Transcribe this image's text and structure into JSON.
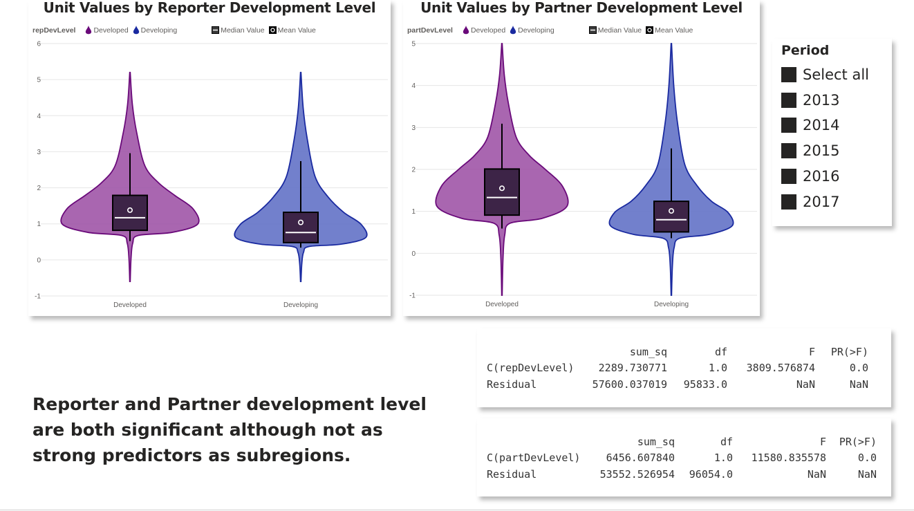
{
  "chart_data": [
    {
      "type": "violin",
      "title": "Unit Values by Reporter Development Level",
      "legend": {
        "field": "repDevLevel",
        "position": "top-left",
        "series": [
          "Developed",
          "Developing"
        ],
        "markers": [
          "Median Value",
          "Mean Value"
        ]
      },
      "xlabel": "",
      "ylabel": "",
      "categories": [
        "Developed",
        "Developing"
      ],
      "ylim": [
        -1,
        6
      ],
      "yticks": [
        "-1",
        "0",
        "1",
        "2",
        "3",
        "4",
        "5",
        "6"
      ],
      "grid": true,
      "series": [
        {
          "name": "Developed",
          "color": "#9b4da3",
          "outline": "#6a0a7a",
          "min": -0.6,
          "max": 5.2,
          "q1": 0.82,
          "median": 1.17,
          "q3": 1.79,
          "whisker_low": 0.52,
          "whisker_high": 2.96,
          "mean": 1.38
        },
        {
          "name": "Developing",
          "color": "#5b6bc4",
          "outline": "#1a2aa0",
          "min": -0.6,
          "max": 5.2,
          "q1": 0.48,
          "median": 0.76,
          "q3": 1.32,
          "whisker_low": 0.34,
          "whisker_high": 2.74,
          "mean": 1.04
        }
      ]
    },
    {
      "type": "violin",
      "title": "Unit Values by Partner Development Level",
      "legend": {
        "field": "partDevLevel",
        "position": "top-left",
        "series": [
          "Developed",
          "Developing"
        ],
        "markers": [
          "Median Value",
          "Mean Value"
        ]
      },
      "xlabel": "",
      "ylabel": "",
      "categories": [
        "Developed",
        "Developing"
      ],
      "ylim": [
        -1,
        5
      ],
      "yticks": [
        "-1",
        "0",
        "1",
        "2",
        "3",
        "4",
        "5"
      ],
      "grid": true,
      "series": [
        {
          "name": "Developed",
          "color": "#9b4da3",
          "outline": "#6a0a7a",
          "min": -1.0,
          "max": 5.0,
          "q1": 0.91,
          "median": 1.33,
          "q3": 2.01,
          "whisker_low": 0.59,
          "whisker_high": 3.09,
          "mean": 1.55
        },
        {
          "name": "Developing",
          "color": "#5b6bc4",
          "outline": "#1a2aa0",
          "min": -1.0,
          "max": 5.0,
          "q1": 0.51,
          "median": 0.8,
          "q3": 1.24,
          "whisker_low": 0.36,
          "whisker_high": 2.5,
          "mean": 1.01
        }
      ]
    }
  ],
  "slicer": {
    "title": "Period",
    "items": [
      "Select all",
      "2013",
      "2014",
      "2015",
      "2016",
      "2017"
    ]
  },
  "anova_tables": [
    {
      "headers": [
        "",
        "sum_sq",
        "df",
        "F",
        "PR(>F)"
      ],
      "rows": [
        [
          "C(repDevLevel)",
          "2289.730771",
          "1.0",
          "3809.576874",
          "0.0"
        ],
        [
          "Residual",
          "57600.037019",
          "95833.0",
          "NaN",
          "NaN"
        ]
      ]
    },
    {
      "headers": [
        "",
        "sum_sq",
        "df",
        "F",
        "PR(>F)"
      ],
      "rows": [
        [
          "C(partDevLevel)",
          "6456.607840",
          "1.0",
          "11580.835578",
          "0.0"
        ],
        [
          "Residual",
          "53552.526954",
          "96054.0",
          "NaN",
          "NaN"
        ]
      ]
    }
  ],
  "commentary": "Reporter and Partner development level are both significant although not as strong predictors as subregions."
}
